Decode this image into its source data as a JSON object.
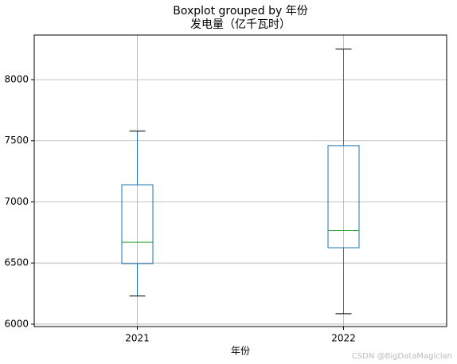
{
  "chart_data": {
    "type": "box",
    "title": "Boxplot grouped by 年份",
    "subtitle": "发电量（亿千瓦时）",
    "x_label": "年份",
    "watermark": "CSDN @BigDataMagician",
    "categories": [
      "2021",
      "2022"
    ],
    "boxes": [
      {
        "min": 6230,
        "q1": 6495,
        "median": 6670,
        "q3": 7140,
        "max": 7580
      },
      {
        "min": 6085,
        "q1": 6625,
        "median": 6765,
        "q3": 7460,
        "max": 8250
      }
    ],
    "box_color": "#1f77b4",
    "median_color": "#2ca02c",
    "cap_color": "#000000",
    "ylim": [
      5980,
      8365
    ],
    "yticks": [
      6000,
      6500,
      7000,
      7500,
      8000
    ],
    "grid": true
  }
}
